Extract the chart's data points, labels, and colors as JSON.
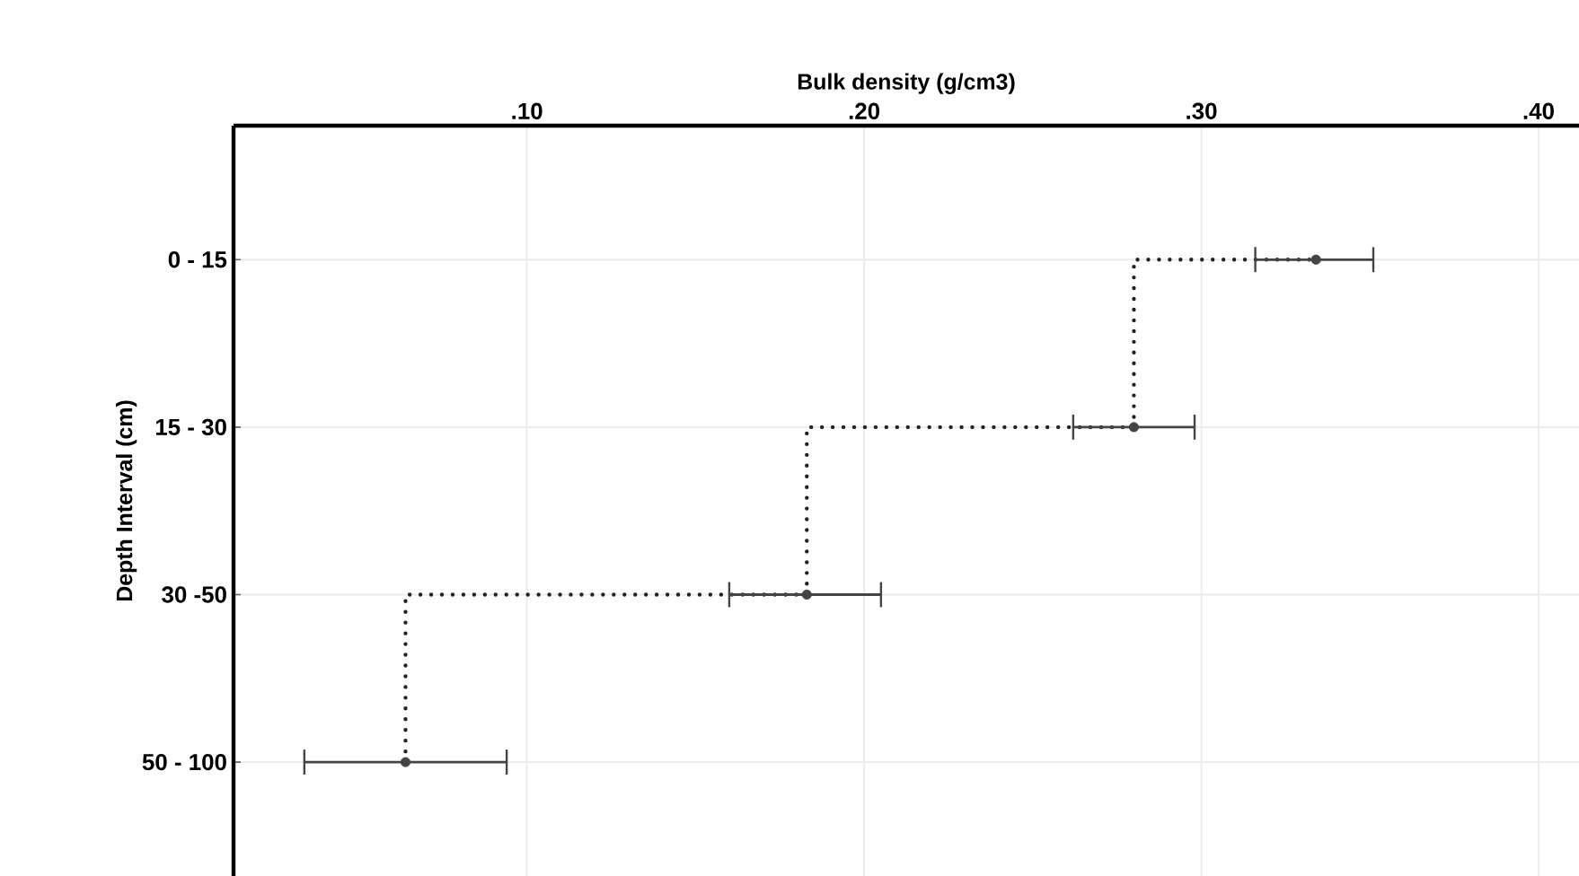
{
  "chart_data": {
    "type": "scatter",
    "orientation": "horizontal",
    "xlabel": "Bulk density (g/cm3)",
    "ylabel": "Depth Interval (cm)",
    "categories": [
      "0 - 15",
      "15 - 30",
      "30 -50",
      "50 - 100"
    ],
    "xlim": [
      0.013,
      0.412
    ],
    "xticks": [
      {
        "value": 0.1,
        "label": ".10"
      },
      {
        "value": 0.2,
        "label": ".20"
      },
      {
        "value": 0.3,
        "label": ".30"
      },
      {
        "value": 0.4,
        "label": ".40"
      }
    ],
    "grid": true,
    "series": [
      {
        "type": "step",
        "color": "#222222",
        "line_style": "dotted",
        "marker": "none",
        "values": [
          0.334,
          0.28,
          0.183,
          0.064
        ]
      },
      {
        "color": "#444444",
        "marker": "circle",
        "values": [
          0.334,
          0.28,
          0.183,
          0.064
        ],
        "errors": [
          [
            0.316,
            0.351
          ],
          [
            0.262,
            0.298
          ],
          [
            0.16,
            0.205
          ],
          [
            0.034,
            0.094
          ]
        ]
      }
    ]
  }
}
